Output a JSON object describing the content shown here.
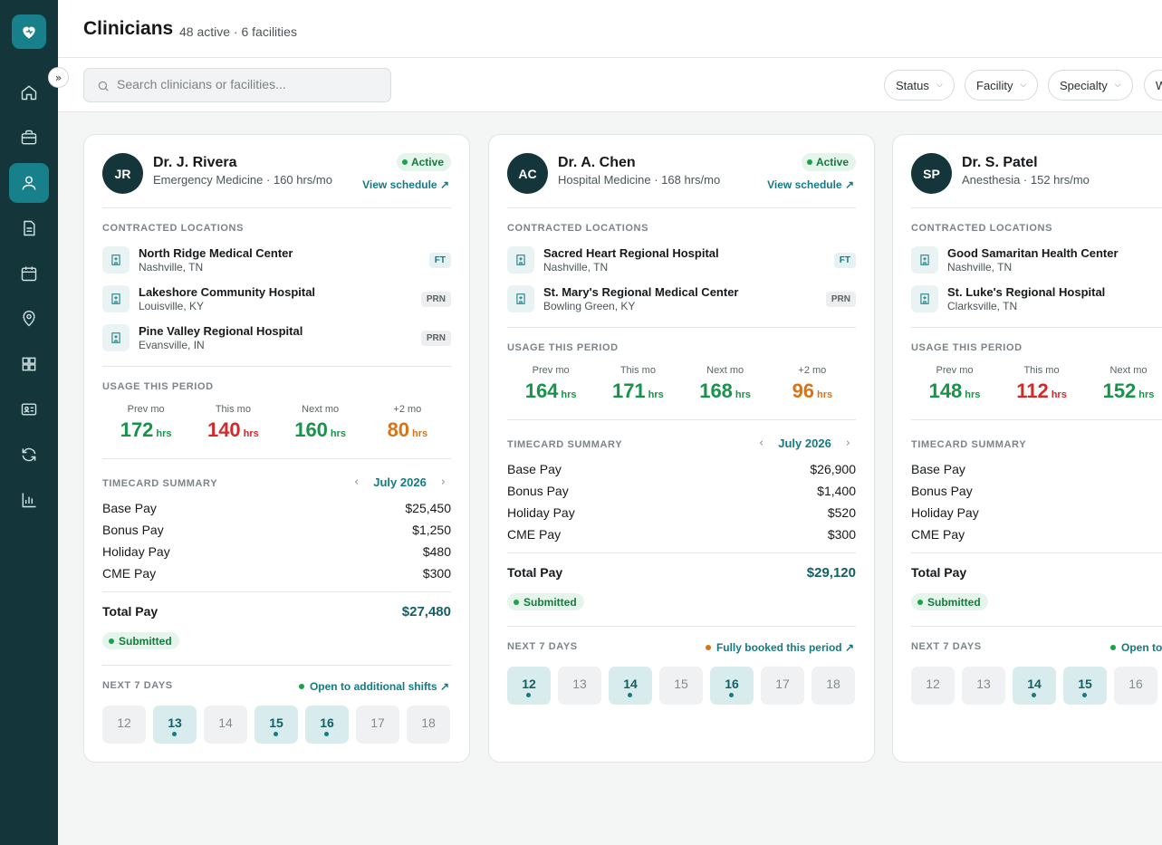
{
  "header": {
    "title": "Clinicians",
    "subtitle": "48 active · 6 facilities"
  },
  "search": {
    "placeholder": "Search clinicians or facilities..."
  },
  "filters": [
    "Status",
    "Facility",
    "Specialty",
    "W"
  ],
  "nav": [
    "home-icon",
    "briefcase-icon",
    "user-icon",
    "document-icon",
    "calendar-icon",
    "map-pin-icon",
    "grid-icon",
    "id-card-icon",
    "refresh-icon",
    "bar-chart-icon"
  ],
  "labels": {
    "contracted": "CONTRACTED LOCATIONS",
    "usage": "USAGE THIS PERIOD",
    "timecard": "TIMECARD SUMMARY",
    "next7": "NEXT 7 DAYS",
    "total": "Total Pay",
    "hrs": "hrs"
  },
  "colors": {
    "accent": "#147a83",
    "sidebar": "#14363a",
    "green": "#17934a",
    "red": "#d12a2a",
    "orange": "#d97416"
  },
  "cards": [
    {
      "initials": "JR",
      "name": "Dr. J. Rivera",
      "specialty": "Emergency Medicine · 160 hrs/mo",
      "status": "Active",
      "view_link": "View schedule ↗",
      "locations": [
        {
          "name": "North Ridge Medical Center",
          "city": "Nashville, TN",
          "tag": "FT"
        },
        {
          "name": "Lakeshore Community Hospital",
          "city": "Louisville, KY",
          "tag": "PRN"
        },
        {
          "name": "Pine Valley Regional Hospital",
          "city": "Evansville, IN",
          "tag": "PRN"
        }
      ],
      "usage": [
        {
          "label": "Prev mo",
          "value": "172",
          "tone": "green"
        },
        {
          "label": "This mo",
          "value": "140",
          "tone": "red"
        },
        {
          "label": "Next mo",
          "value": "160",
          "tone": "green"
        },
        {
          "label": "+2 mo",
          "value": "80",
          "tone": "orange"
        }
      ],
      "month": "July 2026",
      "pay": [
        {
          "label": "Base Pay",
          "amount": "$25,450"
        },
        {
          "label": "Bonus Pay",
          "amount": "$1,250"
        },
        {
          "label": "Holiday Pay",
          "amount": "$480"
        },
        {
          "label": "CME Pay",
          "amount": "$300"
        }
      ],
      "total": "$27,480",
      "timecard_status": "Submitted",
      "availability": "Open to additional shifts ↗",
      "availability_dot": "#17a34a",
      "days": [
        {
          "day": "12",
          "booked": false
        },
        {
          "day": "13",
          "booked": true
        },
        {
          "day": "14",
          "booked": false
        },
        {
          "day": "15",
          "booked": true
        },
        {
          "day": "16",
          "booked": true
        },
        {
          "day": "17",
          "booked": false
        },
        {
          "day": "18",
          "booked": false
        }
      ]
    },
    {
      "initials": "AC",
      "name": "Dr. A. Chen",
      "specialty": "Hospital Medicine · 168 hrs/mo",
      "status": "Active",
      "view_link": "View schedule ↗",
      "locations": [
        {
          "name": "Sacred Heart Regional Hospital",
          "city": "Nashville, TN",
          "tag": "FT"
        },
        {
          "name": "St. Mary's Regional Medical Center",
          "city": "Bowling Green, KY",
          "tag": "PRN"
        }
      ],
      "usage": [
        {
          "label": "Prev mo",
          "value": "164",
          "tone": "green"
        },
        {
          "label": "This mo",
          "value": "171",
          "tone": "green"
        },
        {
          "label": "Next mo",
          "value": "168",
          "tone": "green"
        },
        {
          "label": "+2 mo",
          "value": "96",
          "tone": "orange"
        }
      ],
      "month": "July 2026",
      "pay": [
        {
          "label": "Base Pay",
          "amount": "$26,900"
        },
        {
          "label": "Bonus Pay",
          "amount": "$1,400"
        },
        {
          "label": "Holiday Pay",
          "amount": "$520"
        },
        {
          "label": "CME Pay",
          "amount": "$300"
        }
      ],
      "total": "$29,120",
      "timecard_status": "Submitted",
      "availability": "Fully booked this period ↗",
      "availability_dot": "#d97416",
      "days": [
        {
          "day": "12",
          "booked": true
        },
        {
          "day": "13",
          "booked": false
        },
        {
          "day": "14",
          "booked": true
        },
        {
          "day": "15",
          "booked": false
        },
        {
          "day": "16",
          "booked": true
        },
        {
          "day": "17",
          "booked": false
        },
        {
          "day": "18",
          "booked": false
        }
      ]
    },
    {
      "initials": "SP",
      "name": "Dr. S. Patel",
      "specialty": "Anesthesia · 152 hrs/mo",
      "status": "",
      "view_link": "",
      "locations": [
        {
          "name": "Good Samaritan Health Center",
          "city": "Nashville, TN",
          "tag": ""
        },
        {
          "name": "St. Luke's Regional Hospital",
          "city": "Clarksville, TN",
          "tag": ""
        }
      ],
      "usage": [
        {
          "label": "Prev mo",
          "value": "148",
          "tone": "green"
        },
        {
          "label": "This mo",
          "value": "112",
          "tone": "red"
        },
        {
          "label": "Next mo",
          "value": "152",
          "tone": "green"
        },
        {
          "label": "",
          "value": "",
          "tone": "green"
        }
      ],
      "month": "",
      "pay": [
        {
          "label": "Base Pay",
          "amount": ""
        },
        {
          "label": "Bonus Pay",
          "amount": ""
        },
        {
          "label": "Holiday Pay",
          "amount": ""
        },
        {
          "label": "CME Pay",
          "amount": ""
        }
      ],
      "total": "",
      "timecard_status": "Submitted",
      "availability": "Open to",
      "availability_dot": "#17a34a",
      "days": [
        {
          "day": "12",
          "booked": false
        },
        {
          "day": "13",
          "booked": false
        },
        {
          "day": "14",
          "booked": true
        },
        {
          "day": "15",
          "booked": true
        },
        {
          "day": "16",
          "booked": false
        }
      ]
    }
  ]
}
